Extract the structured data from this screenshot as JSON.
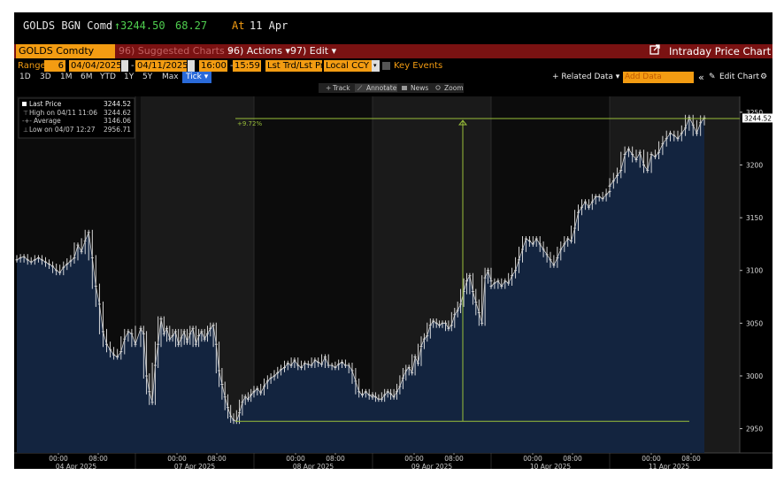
{
  "header": {
    "ticker": "GOLDS BGN Comd",
    "arrow": "↑",
    "price": "3244.50",
    "change": "68.27",
    "at_label": "At",
    "date": "11 Apr"
  },
  "toolbar": {
    "security": "GOLDS Comdty",
    "suggested": "96) Suggested Charts ▾",
    "actions": "96) Actions ▾",
    "edit": "97) Edit ▾",
    "chart_title": "Intraday Price Chart"
  },
  "range_bar": {
    "range_label": "Range",
    "range_days": "6",
    "start_date": "04/04/2025",
    "end_date": "04/11/2025",
    "start_time": "16:00",
    "end_time": "15:59",
    "trade_type": "Lst Trd/Lst Pr",
    "currency": "Local CCY",
    "key_events": "Key Events"
  },
  "period_bar": {
    "periods": [
      "1D",
      "3D",
      "1M",
      "6M",
      "YTD",
      "1Y",
      "5Y",
      "Max"
    ],
    "tick": "Tick ▾",
    "related": "+ Related Data ▾",
    "add_data_placeholder": "Add Data",
    "collapse": "«",
    "edit_chart": "Edit Chart",
    "settings_icon": "gear-icon"
  },
  "tools": {
    "track": "Track",
    "annotate": "Annotate",
    "news": "News",
    "zoom": "Zoom"
  },
  "legend": {
    "items": [
      {
        "label": "Last Price",
        "value": "3244.52"
      },
      {
        "label": "High on 04/11 11:06",
        "value": "3244.62"
      },
      {
        "label": "Average",
        "value": "3146.06"
      },
      {
        "label": "Low on 04/07 12:27",
        "value": "2956.71"
      }
    ]
  },
  "annotation": {
    "label": "+9.72%"
  },
  "colors": {
    "background": "#000000",
    "area_fill": "#13243f",
    "price_line": "#e8e8e8",
    "accent_orange": "#f39c12",
    "toolbar_red": "#7a1212",
    "trend_line": "#9abf3a"
  },
  "chart_data": {
    "type": "line",
    "series": [
      {
        "name": "Last Price"
      }
    ],
    "x_tick_times": [
      "00:00",
      "08:00",
      "00:00",
      "08:00",
      "00:00",
      "08:00",
      "00:00",
      "08:00",
      "00:00",
      "08:00",
      "00:00",
      "08:00"
    ],
    "x_day_labels": [
      "04 Apr 2025",
      "07 Apr 2025",
      "08 Apr 2025",
      "09 Apr 2025",
      "10 Apr 2025",
      "11 Apr 2025"
    ],
    "y_ticks": [
      2950,
      3000,
      3050,
      3100,
      3150,
      3200,
      3250
    ],
    "ylim": [
      2927,
      3265
    ],
    "last_price_label": "3244.52",
    "sessions": [
      {
        "day": "04 Apr 2025",
        "points": [
          3110,
          3112,
          3113,
          3110,
          3108,
          3110,
          3112,
          3110,
          3108,
          3106,
          3104,
          3100,
          3098,
          3103,
          3106,
          3109,
          3112,
          3124,
          3118,
          3128,
          3136,
          3112,
          3085,
          3068,
          3042,
          3030,
          3025,
          3020,
          3018,
          3023,
          3035,
          3042,
          3040,
          3030
        ]
      },
      {
        "day": "07 Apr 2025",
        "points": [
          3045,
          3040,
          3000,
          2985,
          2975,
          3010,
          3030,
          3054,
          3040,
          3045,
          3035,
          3038,
          3042,
          3030,
          3036,
          3042,
          3032,
          3040,
          3045,
          3030,
          3038,
          3042,
          3035,
          3040,
          3045,
          3048,
          3030,
          3005,
          2992,
          2980,
          2970,
          2962,
          2958,
          2957,
          2965,
          2975,
          2980,
          2978,
          2982,
          2985
        ]
      },
      {
        "day": "08 Apr 2025",
        "points": [
          2985,
          2988,
          2984,
          2990,
          2995,
          2998,
          3000,
          3003,
          3006,
          3008,
          3012,
          3010,
          3015,
          3010,
          3008,
          3012,
          3011,
          3010,
          3015,
          3013,
          3011,
          3018,
          3010,
          3010,
          3008,
          3011,
          3013,
          3010,
          3010,
          3005,
          2995,
          2985,
          2982,
          2985,
          2982,
          2980
        ]
      },
      {
        "day": "09 Apr 2025",
        "points": [
          2982,
          2980,
          2978,
          2978,
          2982,
          2985,
          2983,
          2980,
          2985,
          2990,
          2998,
          3005,
          3008,
          3003,
          3018,
          3012,
          3028,
          3035,
          3038,
          3048,
          3052,
          3050,
          3048,
          3050,
          3050,
          3045,
          3048,
          3058,
          3062,
          3068,
          3080,
          3090,
          3095,
          3080,
          3070,
          3060,
          3050,
          3093,
          3100,
          3090
        ]
      },
      {
        "day": "10 Apr 2025",
        "points": [
          3085,
          3088,
          3090,
          3085,
          3090,
          3088,
          3095,
          3100,
          3110,
          3120,
          3130,
          3128,
          3125,
          3130,
          3125,
          3120,
          3115,
          3110,
          3105,
          3112,
          3120,
          3125,
          3130,
          3128,
          3140,
          3155,
          3160,
          3165,
          3160,
          3165,
          3170,
          3170,
          3168,
          3172,
          3175
        ]
      },
      {
        "day": "11 Apr 2025",
        "points": [
          3180,
          3185,
          3190,
          3195,
          3210,
          3215,
          3210,
          3205,
          3212,
          3200,
          3195,
          3210,
          3208,
          3212,
          3220,
          3225,
          3230,
          3228,
          3225,
          3230,
          3235,
          3245,
          3238,
          3230,
          3240,
          3244.5
        ]
      }
    ],
    "trend_line": {
      "from_price": 2957,
      "to_price": 3244,
      "change_label": "+9.72%"
    }
  }
}
